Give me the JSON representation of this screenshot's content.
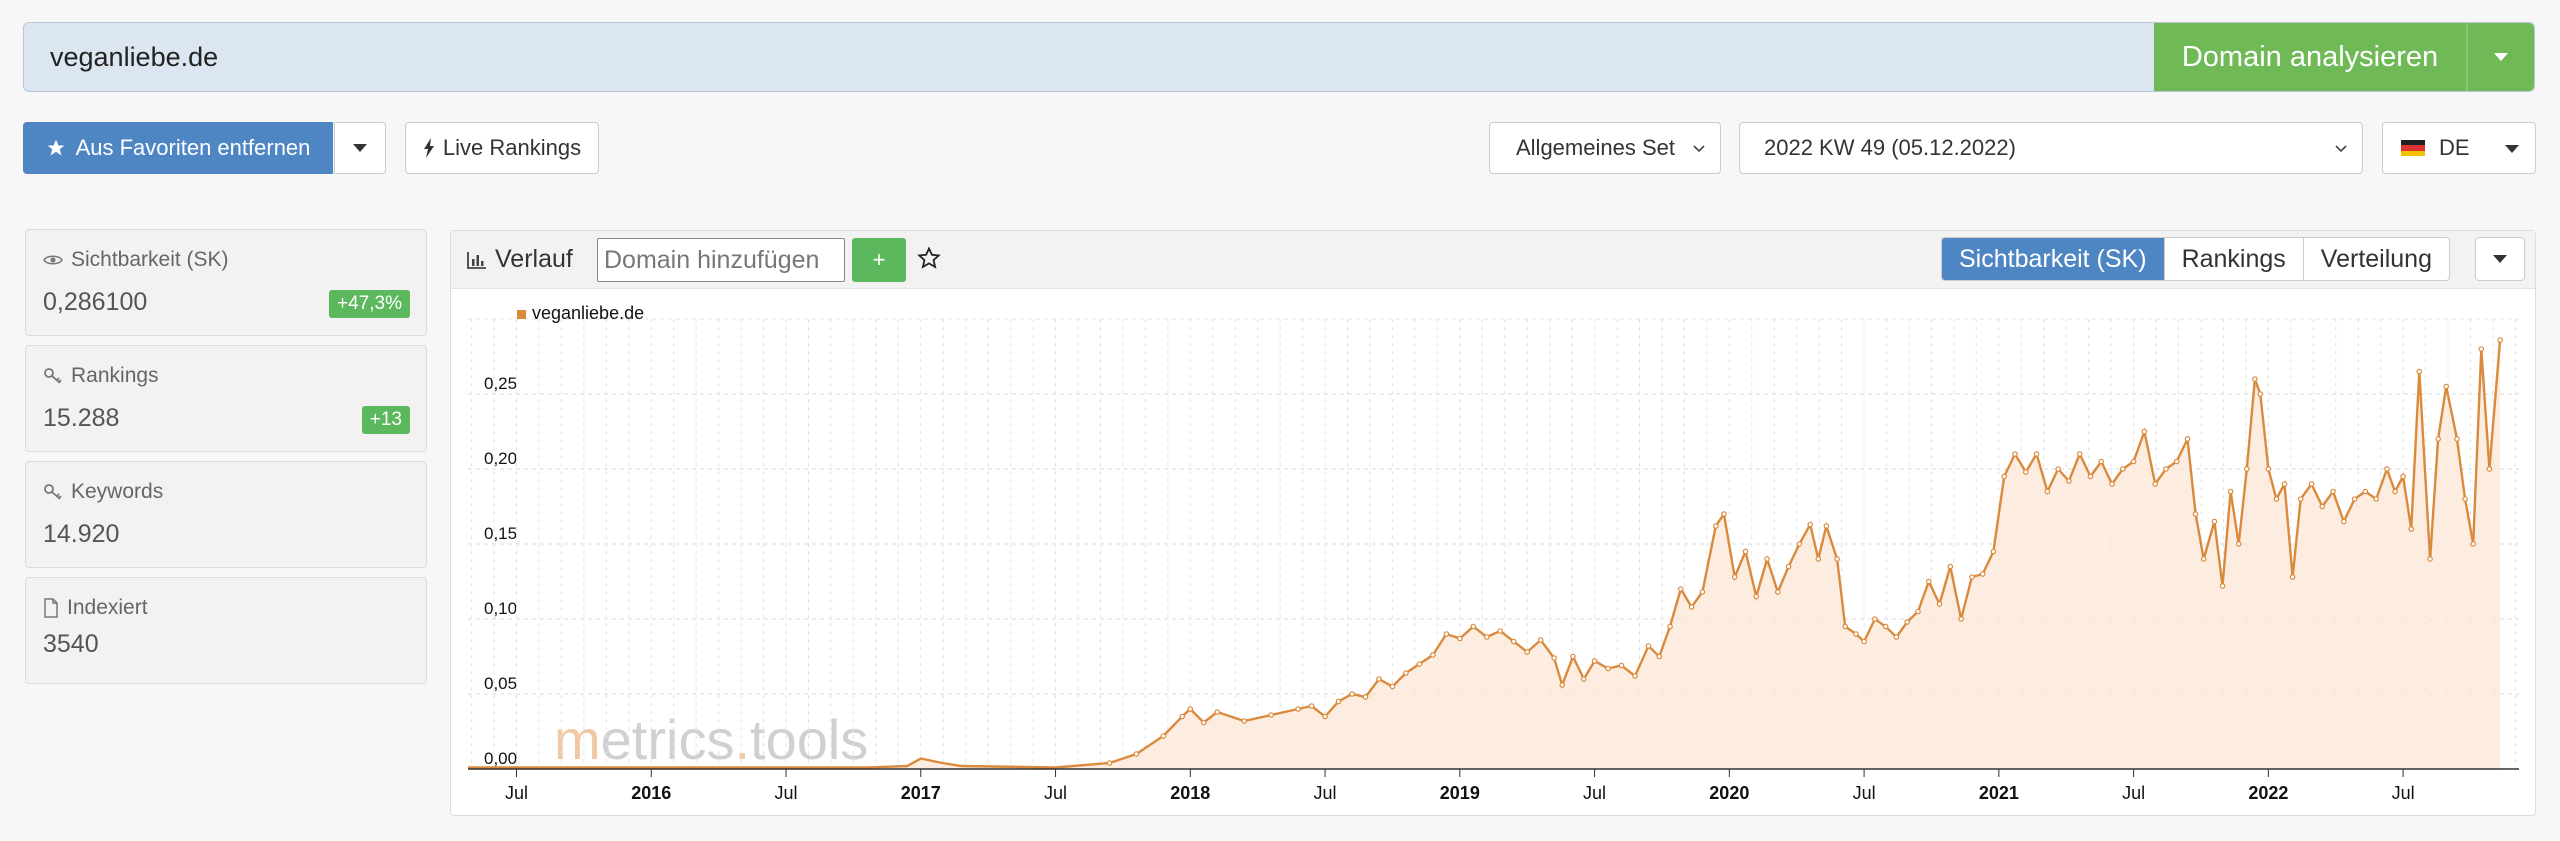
{
  "search": {
    "value": "veganliebe.de",
    "analyze_label": "Domain analysieren"
  },
  "toolbar": {
    "favorite_label": "Aus Favoriten entfernen",
    "live_label": "Live Rankings",
    "set_value": "Allgemeines Set",
    "week_value": "2022 KW 49 (05.12.2022)",
    "country_value": "DE"
  },
  "metrics": [
    {
      "label": "Sichtbarkeit (SK)",
      "value": "0,286100",
      "badge": "+47,3%",
      "icon": "eye-icon"
    },
    {
      "label": "Rankings",
      "value": "15.288",
      "badge": "+13",
      "icon": "key-icon"
    },
    {
      "label": "Keywords",
      "value": "14.920",
      "icon": "key-icon"
    },
    {
      "label": "Indexiert",
      "value": "3540",
      "icon": "file-icon"
    }
  ],
  "panel": {
    "title": "Verlauf",
    "domain_placeholder": "Domain hinzufügen",
    "plus_label": "+",
    "tabs": [
      "Sichtbarkeit (SK)",
      "Rankings",
      "Verteilung"
    ],
    "watermark_m": "m",
    "watermark_rest": "etrics",
    "watermark_dot": ".",
    "watermark_tools": "tools"
  },
  "colors": {
    "accent_blue": "#4e86c4",
    "green": "#6fba57",
    "series": "#d98a3d"
  },
  "chart_data": {
    "type": "area",
    "legend": [
      "veganliebe.de"
    ],
    "ylim": [
      0,
      0.3
    ],
    "yticks": [
      0,
      0.05,
      0.1,
      0.15,
      0.2,
      0.25
    ],
    "ytick_labels": [
      "0,00",
      "0,05",
      "0,10",
      "0,15",
      "0,20",
      "0,25"
    ],
    "xticks": [
      {
        "t": 2015.5,
        "label": "Jul",
        "bold": false
      },
      {
        "t": 2016.0,
        "label": "2016",
        "bold": true
      },
      {
        "t": 2016.5,
        "label": "Jul",
        "bold": false
      },
      {
        "t": 2017.0,
        "label": "2017",
        "bold": true
      },
      {
        "t": 2017.5,
        "label": "Jul",
        "bold": false
      },
      {
        "t": 2018.0,
        "label": "2018",
        "bold": true
      },
      {
        "t": 2018.5,
        "label": "Jul",
        "bold": false
      },
      {
        "t": 2019.0,
        "label": "2019",
        "bold": true
      },
      {
        "t": 2019.5,
        "label": "Jul",
        "bold": false
      },
      {
        "t": 2020.0,
        "label": "2020",
        "bold": true
      },
      {
        "t": 2020.5,
        "label": "Jul",
        "bold": false
      },
      {
        "t": 2021.0,
        "label": "2021",
        "bold": true
      },
      {
        "t": 2021.5,
        "label": "Jul",
        "bold": false
      },
      {
        "t": 2022.0,
        "label": "2022",
        "bold": true
      },
      {
        "t": 2022.5,
        "label": "Jul",
        "bold": false
      }
    ],
    "xlim": [
      2015.32,
      2022.93
    ],
    "series": [
      {
        "name": "veganliebe.de",
        "points": [
          [
            2015.32,
            0.001
          ],
          [
            2016.8,
            0.001
          ],
          [
            2016.95,
            0.002
          ],
          [
            2017.0,
            0.007
          ],
          [
            2017.08,
            0.004
          ],
          [
            2017.15,
            0.002
          ],
          [
            2017.5,
            0.001
          ],
          [
            2017.7,
            0.004
          ],
          [
            2017.8,
            0.01
          ],
          [
            2017.9,
            0.022
          ],
          [
            2017.97,
            0.035
          ],
          [
            2018.0,
            0.04
          ],
          [
            2018.05,
            0.031
          ],
          [
            2018.1,
            0.038
          ],
          [
            2018.2,
            0.032
          ],
          [
            2018.3,
            0.036
          ],
          [
            2018.4,
            0.04
          ],
          [
            2018.45,
            0.042
          ],
          [
            2018.5,
            0.035
          ],
          [
            2018.55,
            0.045
          ],
          [
            2018.6,
            0.05
          ],
          [
            2018.65,
            0.048
          ],
          [
            2018.7,
            0.06
          ],
          [
            2018.75,
            0.055
          ],
          [
            2018.8,
            0.064
          ],
          [
            2018.85,
            0.07
          ],
          [
            2018.9,
            0.076
          ],
          [
            2018.95,
            0.09
          ],
          [
            2019.0,
            0.087
          ],
          [
            2019.05,
            0.095
          ],
          [
            2019.1,
            0.088
          ],
          [
            2019.15,
            0.092
          ],
          [
            2019.2,
            0.085
          ],
          [
            2019.25,
            0.078
          ],
          [
            2019.3,
            0.086
          ],
          [
            2019.35,
            0.074
          ],
          [
            2019.38,
            0.056
          ],
          [
            2019.42,
            0.075
          ],
          [
            2019.46,
            0.06
          ],
          [
            2019.5,
            0.072
          ],
          [
            2019.55,
            0.067
          ],
          [
            2019.6,
            0.069
          ],
          [
            2019.65,
            0.062
          ],
          [
            2019.7,
            0.082
          ],
          [
            2019.74,
            0.075
          ],
          [
            2019.78,
            0.095
          ],
          [
            2019.82,
            0.12
          ],
          [
            2019.86,
            0.108
          ],
          [
            2019.9,
            0.118
          ],
          [
            2019.95,
            0.162
          ],
          [
            2019.98,
            0.17
          ],
          [
            2020.02,
            0.128
          ],
          [
            2020.06,
            0.145
          ],
          [
            2020.1,
            0.115
          ],
          [
            2020.14,
            0.14
          ],
          [
            2020.18,
            0.118
          ],
          [
            2020.22,
            0.135
          ],
          [
            2020.26,
            0.15
          ],
          [
            2020.3,
            0.163
          ],
          [
            2020.33,
            0.14
          ],
          [
            2020.36,
            0.162
          ],
          [
            2020.4,
            0.14
          ],
          [
            2020.43,
            0.095
          ],
          [
            2020.47,
            0.09
          ],
          [
            2020.5,
            0.085
          ],
          [
            2020.54,
            0.1
          ],
          [
            2020.58,
            0.095
          ],
          [
            2020.62,
            0.088
          ],
          [
            2020.66,
            0.098
          ],
          [
            2020.7,
            0.105
          ],
          [
            2020.74,
            0.125
          ],
          [
            2020.78,
            0.11
          ],
          [
            2020.82,
            0.135
          ],
          [
            2020.86,
            0.1
          ],
          [
            2020.9,
            0.128
          ],
          [
            2020.94,
            0.13
          ],
          [
            2020.98,
            0.145
          ],
          [
            2021.02,
            0.195
          ],
          [
            2021.06,
            0.21
          ],
          [
            2021.1,
            0.198
          ],
          [
            2021.14,
            0.21
          ],
          [
            2021.18,
            0.185
          ],
          [
            2021.22,
            0.2
          ],
          [
            2021.26,
            0.192
          ],
          [
            2021.3,
            0.21
          ],
          [
            2021.34,
            0.195
          ],
          [
            2021.38,
            0.205
          ],
          [
            2021.42,
            0.19
          ],
          [
            2021.46,
            0.2
          ],
          [
            2021.5,
            0.205
          ],
          [
            2021.54,
            0.225
          ],
          [
            2021.58,
            0.19
          ],
          [
            2021.62,
            0.2
          ],
          [
            2021.66,
            0.205
          ],
          [
            2021.7,
            0.22
          ],
          [
            2021.73,
            0.17
          ],
          [
            2021.76,
            0.14
          ],
          [
            2021.8,
            0.165
          ],
          [
            2021.83,
            0.122
          ],
          [
            2021.86,
            0.185
          ],
          [
            2021.89,
            0.15
          ],
          [
            2021.92,
            0.2
          ],
          [
            2021.95,
            0.26
          ],
          [
            2021.97,
            0.25
          ],
          [
            2022.0,
            0.2
          ],
          [
            2022.03,
            0.18
          ],
          [
            2022.06,
            0.19
          ],
          [
            2022.09,
            0.128
          ],
          [
            2022.12,
            0.18
          ],
          [
            2022.16,
            0.19
          ],
          [
            2022.2,
            0.175
          ],
          [
            2022.24,
            0.185
          ],
          [
            2022.28,
            0.165
          ],
          [
            2022.32,
            0.18
          ],
          [
            2022.36,
            0.185
          ],
          [
            2022.4,
            0.18
          ],
          [
            2022.44,
            0.2
          ],
          [
            2022.47,
            0.185
          ],
          [
            2022.5,
            0.195
          ],
          [
            2022.53,
            0.16
          ],
          [
            2022.56,
            0.265
          ],
          [
            2022.6,
            0.14
          ],
          [
            2022.63,
            0.22
          ],
          [
            2022.66,
            0.255
          ],
          [
            2022.7,
            0.22
          ],
          [
            2022.73,
            0.18
          ],
          [
            2022.76,
            0.15
          ],
          [
            2022.79,
            0.28
          ],
          [
            2022.82,
            0.2
          ],
          [
            2022.86,
            0.286
          ]
        ]
      }
    ]
  }
}
